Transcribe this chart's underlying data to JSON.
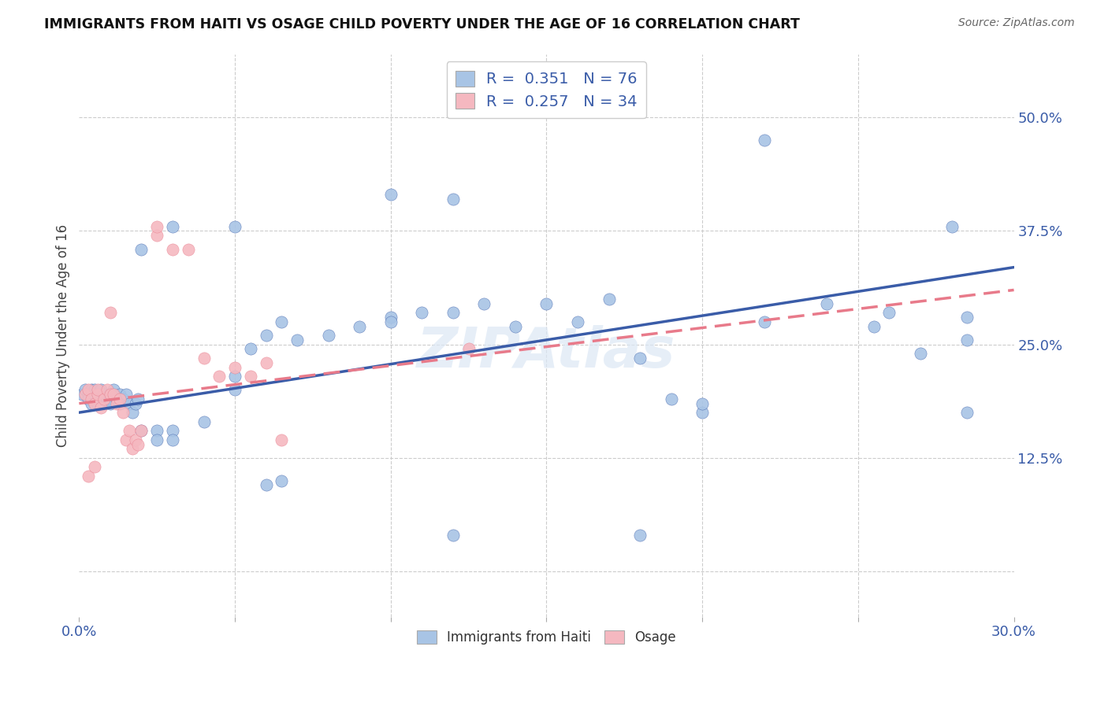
{
  "title": "IMMIGRANTS FROM HAITI VS OSAGE CHILD POVERTY UNDER THE AGE OF 16 CORRELATION CHART",
  "source": "Source: ZipAtlas.com",
  "ylabel": "Child Poverty Under the Age of 16",
  "xlim": [
    0.0,
    0.3
  ],
  "ylim": [
    -0.05,
    0.57
  ],
  "color_haiti": "#a8c4e5",
  "color_osage": "#f5b8c0",
  "color_line_haiti": "#3a5ca8",
  "color_line_osage": "#e87a8a",
  "legend_label1": "R =  0.351   N = 76",
  "legend_label2": "R =  0.257   N = 34",
  "watermark": "ZIPAtlas",
  "haiti_line_x0": 0.0,
  "haiti_line_y0": 0.175,
  "haiti_line_x1": 0.3,
  "haiti_line_y1": 0.335,
  "osage_line_x0": 0.0,
  "osage_line_y0": 0.185,
  "osage_line_x1": 0.3,
  "osage_line_y1": 0.31,
  "haiti_pts": [
    [
      0.001,
      0.195
    ],
    [
      0.002,
      0.2
    ],
    [
      0.003,
      0.195
    ],
    [
      0.003,
      0.19
    ],
    [
      0.004,
      0.2
    ],
    [
      0.004,
      0.185
    ],
    [
      0.005,
      0.195
    ],
    [
      0.005,
      0.2
    ],
    [
      0.006,
      0.195
    ],
    [
      0.006,
      0.185
    ],
    [
      0.007,
      0.19
    ],
    [
      0.007,
      0.2
    ],
    [
      0.008,
      0.195
    ],
    [
      0.008,
      0.185
    ],
    [
      0.009,
      0.19
    ],
    [
      0.009,
      0.19
    ],
    [
      0.01,
      0.195
    ],
    [
      0.01,
      0.19
    ],
    [
      0.01,
      0.185
    ],
    [
      0.011,
      0.195
    ],
    [
      0.011,
      0.2
    ],
    [
      0.012,
      0.19
    ],
    [
      0.013,
      0.195
    ],
    [
      0.013,
      0.185
    ],
    [
      0.014,
      0.19
    ],
    [
      0.015,
      0.195
    ],
    [
      0.016,
      0.185
    ],
    [
      0.017,
      0.175
    ],
    [
      0.018,
      0.185
    ],
    [
      0.019,
      0.19
    ],
    [
      0.02,
      0.155
    ],
    [
      0.025,
      0.155
    ],
    [
      0.025,
      0.145
    ],
    [
      0.03,
      0.155
    ],
    [
      0.03,
      0.145
    ],
    [
      0.04,
      0.165
    ],
    [
      0.05,
      0.2
    ],
    [
      0.05,
      0.215
    ],
    [
      0.055,
      0.245
    ],
    [
      0.06,
      0.26
    ],
    [
      0.065,
      0.275
    ],
    [
      0.07,
      0.255
    ],
    [
      0.08,
      0.26
    ],
    [
      0.09,
      0.27
    ],
    [
      0.1,
      0.28
    ],
    [
      0.1,
      0.275
    ],
    [
      0.11,
      0.285
    ],
    [
      0.12,
      0.285
    ],
    [
      0.13,
      0.295
    ],
    [
      0.14,
      0.27
    ],
    [
      0.15,
      0.295
    ],
    [
      0.16,
      0.275
    ],
    [
      0.17,
      0.3
    ],
    [
      0.18,
      0.235
    ],
    [
      0.19,
      0.19
    ],
    [
      0.2,
      0.175
    ],
    [
      0.22,
      0.275
    ],
    [
      0.24,
      0.295
    ],
    [
      0.255,
      0.27
    ],
    [
      0.26,
      0.285
    ],
    [
      0.27,
      0.24
    ],
    [
      0.285,
      0.28
    ],
    [
      0.285,
      0.255
    ],
    [
      0.02,
      0.355
    ],
    [
      0.03,
      0.38
    ],
    [
      0.05,
      0.38
    ],
    [
      0.1,
      0.415
    ],
    [
      0.12,
      0.41
    ],
    [
      0.22,
      0.475
    ],
    [
      0.28,
      0.38
    ],
    [
      0.285,
      0.175
    ],
    [
      0.12,
      0.04
    ],
    [
      0.18,
      0.04
    ],
    [
      0.06,
      0.095
    ],
    [
      0.065,
      0.1
    ],
    [
      0.2,
      0.185
    ]
  ],
  "osage_pts": [
    [
      0.002,
      0.195
    ],
    [
      0.003,
      0.2
    ],
    [
      0.004,
      0.19
    ],
    [
      0.005,
      0.185
    ],
    [
      0.006,
      0.195
    ],
    [
      0.006,
      0.2
    ],
    [
      0.007,
      0.18
    ],
    [
      0.008,
      0.19
    ],
    [
      0.009,
      0.2
    ],
    [
      0.01,
      0.195
    ],
    [
      0.011,
      0.195
    ],
    [
      0.012,
      0.185
    ],
    [
      0.013,
      0.19
    ],
    [
      0.014,
      0.175
    ],
    [
      0.015,
      0.145
    ],
    [
      0.016,
      0.155
    ],
    [
      0.017,
      0.135
    ],
    [
      0.018,
      0.145
    ],
    [
      0.019,
      0.14
    ],
    [
      0.02,
      0.155
    ],
    [
      0.025,
      0.37
    ],
    [
      0.025,
      0.38
    ],
    [
      0.03,
      0.355
    ],
    [
      0.035,
      0.355
    ],
    [
      0.04,
      0.235
    ],
    [
      0.045,
      0.215
    ],
    [
      0.05,
      0.225
    ],
    [
      0.055,
      0.215
    ],
    [
      0.06,
      0.23
    ],
    [
      0.065,
      0.145
    ],
    [
      0.003,
      0.105
    ],
    [
      0.005,
      0.115
    ],
    [
      0.125,
      0.245
    ],
    [
      0.01,
      0.285
    ]
  ]
}
